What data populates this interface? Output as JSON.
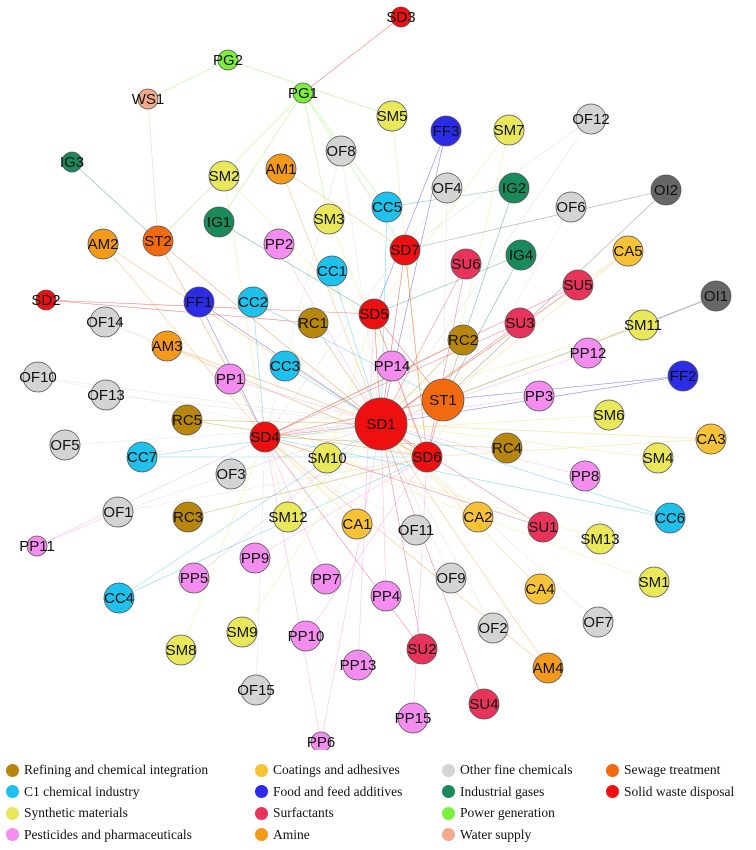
{
  "categories": {
    "RC": {
      "label": "Refining and chemical integration",
      "color": "#b8860b"
    },
    "CC": {
      "label": "C1 chemical industry",
      "color": "#1ec0ec"
    },
    "SM": {
      "label": "Synthetic materials",
      "color": "#e8e85a"
    },
    "PP": {
      "label": "Pesticides and pharmaceuticals",
      "color": "#f58cf0"
    },
    "CA": {
      "label": "Coatings and adhesives",
      "color": "#f7c235"
    },
    "FF": {
      "label": "Food and feed additives",
      "color": "#2c2ce8"
    },
    "SU": {
      "label": "Surfactants",
      "color": "#e8335a"
    },
    "AM": {
      "label": "Amine",
      "color": "#f39a1a"
    },
    "OF": {
      "label": "Other fine chemicals",
      "color": "#d4d4d4"
    },
    "IG": {
      "label": "Industrial gases",
      "color": "#1a8a5c"
    },
    "PG": {
      "label": "Power generation",
      "color": "#7cf03c"
    },
    "WS": {
      "label": "Water supply",
      "color": "#f2a98c"
    },
    "ST": {
      "label": "Sewage treatment",
      "color": "#f26a10"
    },
    "SD": {
      "label": "Solid waste disposal",
      "color": "#ee1010"
    },
    "OI": {
      "label": "Other industries",
      "color": "#666666"
    }
  },
  "legend": [
    [
      "RC",
      "CA",
      "OF",
      "ST"
    ],
    [
      "CC",
      "FF",
      "IG",
      "SD"
    ],
    [
      "SM",
      "SU",
      "PG"
    ],
    [
      "PP",
      "AM",
      "WS"
    ]
  ],
  "nodes": [
    {
      "id": "SD1",
      "cat": "SD",
      "size": "xl"
    },
    {
      "id": "ST1",
      "cat": "ST",
      "size": "l"
    },
    {
      "id": "SD4",
      "cat": "SD",
      "size": "m"
    },
    {
      "id": "SD6",
      "cat": "SD",
      "size": "m"
    },
    {
      "id": "SD5",
      "cat": "SD",
      "size": "m"
    },
    {
      "id": "SD7",
      "cat": "SD",
      "size": "m"
    },
    {
      "id": "SD3",
      "cat": "SD",
      "size": "s"
    },
    {
      "id": "SD2",
      "cat": "SD",
      "size": "s"
    },
    {
      "id": "ST2",
      "cat": "ST",
      "size": "m"
    },
    {
      "id": "PG1",
      "cat": "PG",
      "size": "s"
    },
    {
      "id": "PG2",
      "cat": "PG",
      "size": "s"
    },
    {
      "id": "WS1",
      "cat": "WS",
      "size": "s"
    },
    {
      "id": "IG1",
      "cat": "IG",
      "size": "m"
    },
    {
      "id": "IG2",
      "cat": "IG",
      "size": "m"
    },
    {
      "id": "IG3",
      "cat": "IG",
      "size": "s"
    },
    {
      "id": "IG4",
      "cat": "IG",
      "size": "m"
    },
    {
      "id": "OI1",
      "cat": "OI",
      "size": "m"
    },
    {
      "id": "OI2",
      "cat": "OI",
      "size": "m"
    },
    {
      "id": "FF1",
      "cat": "FF",
      "size": "m"
    },
    {
      "id": "FF2",
      "cat": "FF",
      "size": "m"
    },
    {
      "id": "FF3",
      "cat": "FF",
      "size": "m"
    },
    {
      "id": "RC1",
      "cat": "RC",
      "size": "m"
    },
    {
      "id": "RC2",
      "cat": "RC",
      "size": "m"
    },
    {
      "id": "RC3",
      "cat": "RC",
      "size": "m"
    },
    {
      "id": "RC4",
      "cat": "RC",
      "size": "m"
    },
    {
      "id": "RC5",
      "cat": "RC",
      "size": "m"
    },
    {
      "id": "CC1",
      "cat": "CC",
      "size": "m"
    },
    {
      "id": "CC2",
      "cat": "CC",
      "size": "m"
    },
    {
      "id": "CC3",
      "cat": "CC",
      "size": "m"
    },
    {
      "id": "CC4",
      "cat": "CC",
      "size": "m"
    },
    {
      "id": "CC5",
      "cat": "CC",
      "size": "m"
    },
    {
      "id": "CC6",
      "cat": "CC",
      "size": "m"
    },
    {
      "id": "CC7",
      "cat": "CC",
      "size": "m"
    },
    {
      "id": "AM1",
      "cat": "AM",
      "size": "m"
    },
    {
      "id": "AM2",
      "cat": "AM",
      "size": "m"
    },
    {
      "id": "AM3",
      "cat": "AM",
      "size": "m"
    },
    {
      "id": "AM4",
      "cat": "AM",
      "size": "m"
    },
    {
      "id": "SM1",
      "cat": "SM",
      "size": "m"
    },
    {
      "id": "SM2",
      "cat": "SM",
      "size": "m"
    },
    {
      "id": "SM3",
      "cat": "SM",
      "size": "m"
    },
    {
      "id": "SM4",
      "cat": "SM",
      "size": "m"
    },
    {
      "id": "SM5",
      "cat": "SM",
      "size": "m"
    },
    {
      "id": "SM6",
      "cat": "SM",
      "size": "m"
    },
    {
      "id": "SM7",
      "cat": "SM",
      "size": "m"
    },
    {
      "id": "SM8",
      "cat": "SM",
      "size": "m"
    },
    {
      "id": "SM9",
      "cat": "SM",
      "size": "m"
    },
    {
      "id": "SM10",
      "cat": "SM",
      "size": "m"
    },
    {
      "id": "SM11",
      "cat": "SM",
      "size": "m"
    },
    {
      "id": "SM12",
      "cat": "SM",
      "size": "m"
    },
    {
      "id": "SM13",
      "cat": "SM",
      "size": "m"
    },
    {
      "id": "CA1",
      "cat": "CA",
      "size": "m"
    },
    {
      "id": "CA2",
      "cat": "CA",
      "size": "m"
    },
    {
      "id": "CA3",
      "cat": "CA",
      "size": "m"
    },
    {
      "id": "CA4",
      "cat": "CA",
      "size": "m"
    },
    {
      "id": "CA5",
      "cat": "CA",
      "size": "m"
    },
    {
      "id": "SU1",
      "cat": "SU",
      "size": "m"
    },
    {
      "id": "SU2",
      "cat": "SU",
      "size": "m"
    },
    {
      "id": "SU3",
      "cat": "SU",
      "size": "m"
    },
    {
      "id": "SU4",
      "cat": "SU",
      "size": "m"
    },
    {
      "id": "SU5",
      "cat": "SU",
      "size": "m"
    },
    {
      "id": "SU6",
      "cat": "SU",
      "size": "m"
    },
    {
      "id": "PP1",
      "cat": "PP",
      "size": "m"
    },
    {
      "id": "PP2",
      "cat": "PP",
      "size": "m"
    },
    {
      "id": "PP3",
      "cat": "PP",
      "size": "m"
    },
    {
      "id": "PP4",
      "cat": "PP",
      "size": "m"
    },
    {
      "id": "PP5",
      "cat": "PP",
      "size": "m"
    },
    {
      "id": "PP6",
      "cat": "PP",
      "size": "s"
    },
    {
      "id": "PP7",
      "cat": "PP",
      "size": "m"
    },
    {
      "id": "PP8",
      "cat": "PP",
      "size": "m"
    },
    {
      "id": "PP9",
      "cat": "PP",
      "size": "m"
    },
    {
      "id": "PP10",
      "cat": "PP",
      "size": "m"
    },
    {
      "id": "PP11",
      "cat": "PP",
      "size": "s"
    },
    {
      "id": "PP12",
      "cat": "PP",
      "size": "m"
    },
    {
      "id": "PP13",
      "cat": "PP",
      "size": "m"
    },
    {
      "id": "PP14",
      "cat": "PP",
      "size": "m"
    },
    {
      "id": "PP15",
      "cat": "PP",
      "size": "m"
    },
    {
      "id": "OF1",
      "cat": "OF",
      "size": "m"
    },
    {
      "id": "OF2",
      "cat": "OF",
      "size": "m"
    },
    {
      "id": "OF3",
      "cat": "OF",
      "size": "m"
    },
    {
      "id": "OF4",
      "cat": "OF",
      "size": "m"
    },
    {
      "id": "OF5",
      "cat": "OF",
      "size": "m"
    },
    {
      "id": "OF6",
      "cat": "OF",
      "size": "m"
    },
    {
      "id": "OF7",
      "cat": "OF",
      "size": "m"
    },
    {
      "id": "OF8",
      "cat": "OF",
      "size": "m"
    },
    {
      "id": "OF9",
      "cat": "OF",
      "size": "m"
    },
    {
      "id": "OF10",
      "cat": "OF",
      "size": "m"
    },
    {
      "id": "OF11",
      "cat": "OF",
      "size": "m"
    },
    {
      "id": "OF12",
      "cat": "OF",
      "size": "m"
    },
    {
      "id": "OF13",
      "cat": "OF",
      "size": "m"
    },
    {
      "id": "OF14",
      "cat": "OF",
      "size": "m"
    },
    {
      "id": "OF15",
      "cat": "OF",
      "size": "m"
    }
  ],
  "edges": [
    [
      "SD3",
      "PG1"
    ],
    [
      "PG2",
      "WS1"
    ],
    [
      "WS1",
      "ST2"
    ],
    [
      "PG2",
      "SM5"
    ],
    [
      "PG1",
      "IG1"
    ],
    [
      "PG1",
      "SM3"
    ],
    [
      "PG1",
      "CC5"
    ],
    [
      "PG1",
      "SD7"
    ],
    [
      "PG1",
      "ST2"
    ],
    [
      "IG3",
      "ST2"
    ],
    [
      "SD2",
      "SD5"
    ],
    [
      "SD2",
      "RC1"
    ],
    [
      "OI1",
      "SM11"
    ],
    [
      "OI1",
      "ST1"
    ],
    [
      "OI2",
      "SD7"
    ],
    [
      "OI2",
      "ST1"
    ],
    [
      "PP11",
      "OF1"
    ],
    [
      "PP11",
      "SD4"
    ],
    [
      "SM7",
      "ST1"
    ],
    [
      "SM7",
      "SD5"
    ],
    [
      "OF12",
      "SD7"
    ],
    [
      "OF12",
      "SD1"
    ],
    [
      "IG2",
      "ST1"
    ],
    [
      "IG2",
      "CC5"
    ],
    [
      "IG4",
      "ST1"
    ],
    [
      "IG4",
      "SD5"
    ],
    [
      "FF3",
      "SD1"
    ],
    [
      "FF3",
      "SD5"
    ],
    [
      "FF2",
      "ST1"
    ],
    [
      "FF2",
      "SD1"
    ],
    [
      "FF1",
      "SD1"
    ],
    [
      "FF1",
      "SD4"
    ],
    [
      "CA5",
      "SD1"
    ],
    [
      "CA5",
      "ST1"
    ],
    [
      "SM2",
      "ST1"
    ],
    [
      "SM2",
      "SD4"
    ],
    [
      "AM1",
      "SD7"
    ],
    [
      "AM1",
      "SD1"
    ],
    [
      "OF8",
      "SD1"
    ],
    [
      "OF8",
      "SD4"
    ],
    [
      "AM2",
      "SD1"
    ],
    [
      "AM2",
      "SD4"
    ],
    [
      "ST2",
      "SD1"
    ],
    [
      "ST2",
      "SD4"
    ],
    [
      "IG1",
      "SD5"
    ],
    [
      "PP2",
      "SD1"
    ],
    [
      "SM3",
      "SD6"
    ],
    [
      "CC5",
      "SD1"
    ],
    [
      "SD7",
      "SD1"
    ],
    [
      "SD7",
      "SD6"
    ],
    [
      "OF4",
      "ST1"
    ],
    [
      "OF4",
      "SD4"
    ],
    [
      "OF6",
      "SD6"
    ],
    [
      "SU6",
      "SD1"
    ],
    [
      "SU5",
      "SD1"
    ],
    [
      "SU5",
      "SD4"
    ],
    [
      "CC1",
      "SD1"
    ],
    [
      "CC2",
      "ST1"
    ],
    [
      "OF14",
      "SD1"
    ],
    [
      "OF14",
      "SD6"
    ],
    [
      "AM3",
      "SD1"
    ],
    [
      "AM3",
      "SD6"
    ],
    [
      "RC1",
      "SD1"
    ],
    [
      "SD5",
      "SD1"
    ],
    [
      "SD5",
      "SD6"
    ],
    [
      "SD5",
      "ST1"
    ],
    [
      "RC2",
      "SD4"
    ],
    [
      "SU3",
      "SD4"
    ],
    [
      "SM11",
      "SD1"
    ],
    [
      "SM11",
      "SD4"
    ],
    [
      "PP12",
      "SD1"
    ],
    [
      "OF10",
      "SD1"
    ],
    [
      "OF10",
      "SD6"
    ],
    [
      "OF13",
      "SD1"
    ],
    [
      "PP1",
      "SD1"
    ],
    [
      "CC3",
      "SD1"
    ],
    [
      "PP14",
      "SD6"
    ],
    [
      "PP3",
      "SD4"
    ],
    [
      "RC5",
      "SD6"
    ],
    [
      "RC5",
      "SD1"
    ],
    [
      "SD4",
      "SD1"
    ],
    [
      "SD4",
      "ST1"
    ],
    [
      "SD6",
      "SD1"
    ],
    [
      "SD6",
      "ST1"
    ],
    [
      "SM6",
      "SD4"
    ],
    [
      "CA3",
      "SD1"
    ],
    [
      "CA3",
      "SD6"
    ],
    [
      "OF5",
      "SD1"
    ],
    [
      "CC7",
      "SD6"
    ],
    [
      "RC4",
      "SD4"
    ],
    [
      "SM4",
      "SD1"
    ],
    [
      "PP8",
      "SD1"
    ],
    [
      "OF3",
      "SD1"
    ],
    [
      "SM10",
      "SD5"
    ],
    [
      "OF1",
      "SD1"
    ],
    [
      "OF1",
      "SD6"
    ],
    [
      "RC3",
      "SD6"
    ],
    [
      "SM12",
      "SD1"
    ],
    [
      "CA1",
      "SD4"
    ],
    [
      "OF11",
      "SD4"
    ],
    [
      "CA2",
      "SD1"
    ],
    [
      "SU1",
      "SD4"
    ],
    [
      "SU1",
      "SD1"
    ],
    [
      "SM13",
      "SD4"
    ],
    [
      "CC6",
      "SD1"
    ],
    [
      "CC6",
      "SD4"
    ],
    [
      "PP5",
      "SD1"
    ],
    [
      "PP9",
      "SD6"
    ],
    [
      "PP7",
      "SD4"
    ],
    [
      "PP4",
      "SD1"
    ],
    [
      "OF9",
      "SD4"
    ],
    [
      "CA4",
      "SD1"
    ],
    [
      "SM1",
      "SD4"
    ],
    [
      "CC4",
      "SD6"
    ],
    [
      "CC4",
      "SD1"
    ],
    [
      "SM9",
      "SD1"
    ],
    [
      "PP10",
      "SD6"
    ],
    [
      "OF2",
      "SD1"
    ],
    [
      "OF7",
      "SD1"
    ],
    [
      "SM8",
      "SD4"
    ],
    [
      "PP13",
      "SD5"
    ],
    [
      "SU2",
      "SD1"
    ],
    [
      "SU2",
      "SD4"
    ],
    [
      "AM4",
      "SD4"
    ],
    [
      "AM4",
      "SD1"
    ],
    [
      "OF15",
      "SD4"
    ],
    [
      "PP15",
      "SD6"
    ],
    [
      "SU4",
      "SD1"
    ],
    [
      "PP6",
      "SD4"
    ],
    [
      "PP6",
      "SD1"
    ],
    [
      "SM5",
      "SD6"
    ],
    [
      "RC2",
      "SD1"
    ],
    [
      "SU3",
      "SD1"
    ],
    [
      "CC2",
      "SD4"
    ],
    [
      "SM12",
      "SD4"
    ],
    [
      "OF9",
      "SD1"
    ],
    [
      "SU6",
      "SD6"
    ],
    [
      "CC7",
      "SD1"
    ]
  ]
}
